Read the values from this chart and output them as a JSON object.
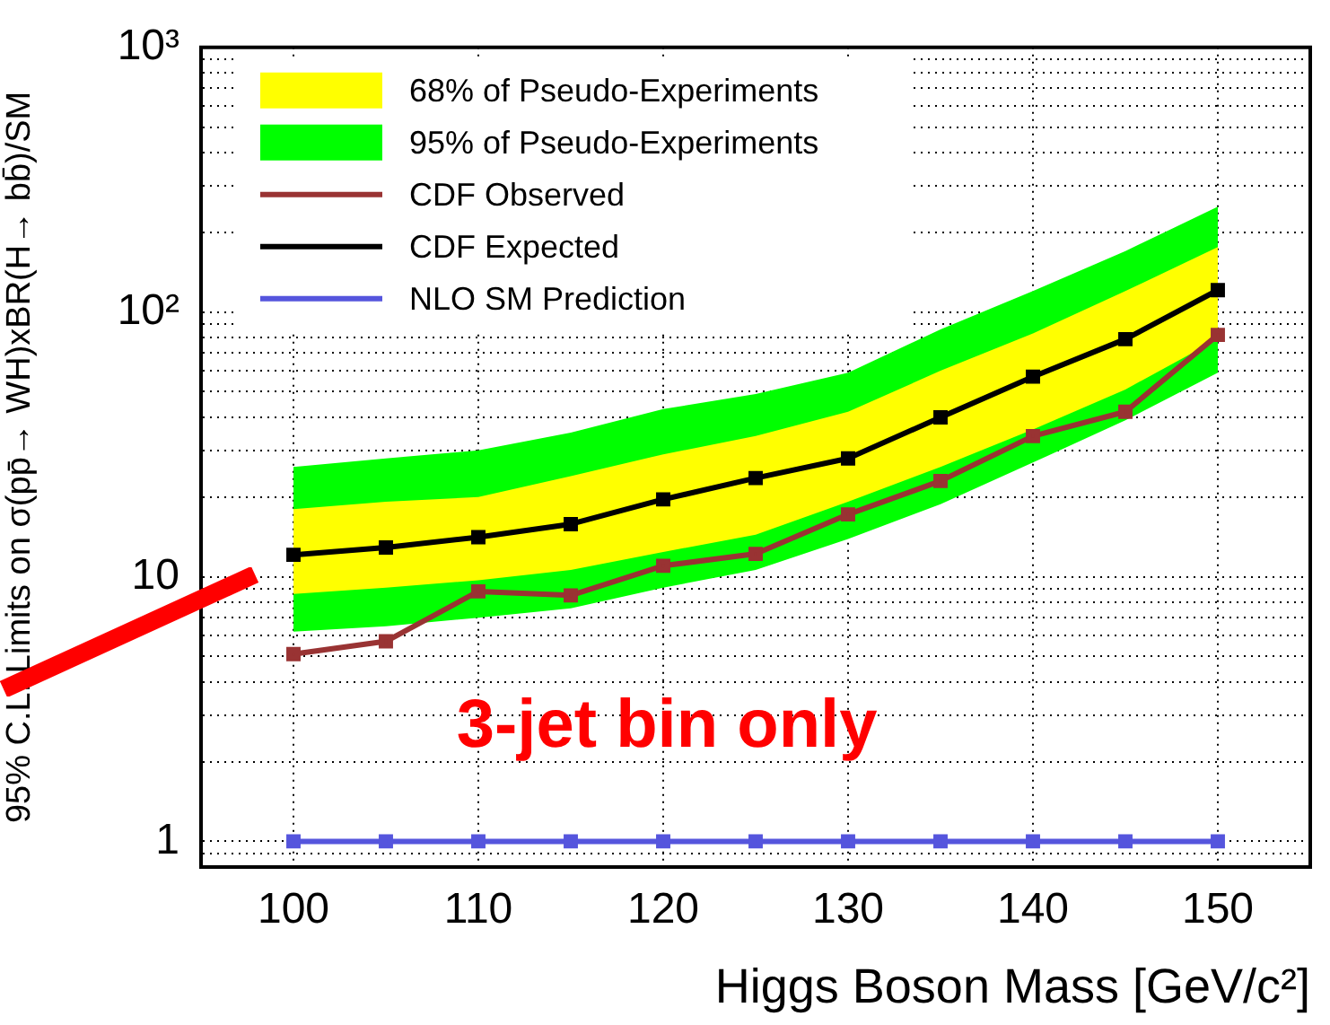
{
  "chart_data": {
    "type": "line",
    "xlabel": "Higgs Boson Mass [GeV/c²]",
    "ylabel": "95% C.L. Limits on σ(pp̄→ WH)xBR(H→ bb̄)/SM",
    "x": [
      100,
      105,
      110,
      115,
      120,
      125,
      130,
      135,
      140,
      145,
      150
    ],
    "series": [
      {
        "name": "68% of Pseudo-Experiments",
        "type": "area",
        "color": "#ffff00",
        "values": [
          null,
          null,
          null,
          null,
          null,
          null,
          null,
          null,
          null,
          null,
          null
        ],
        "lower": [
          8.6,
          9.1,
          9.7,
          10.6,
          12.4,
          14.4,
          19.2,
          26,
          36,
          51,
          79
        ],
        "upper": [
          18,
          19.2,
          20,
          24,
          29,
          34,
          42,
          60,
          83,
          120,
          176
        ]
      },
      {
        "name": "95% of Pseudo-Experiments",
        "type": "area",
        "color": "#00ff00",
        "values": [
          null,
          null,
          null,
          null,
          null,
          null,
          null,
          null,
          null,
          null,
          null
        ],
        "lower": [
          6.2,
          6.5,
          7.0,
          7.6,
          9.1,
          10.6,
          13.9,
          18.8,
          27,
          39,
          59
        ],
        "upper": [
          26,
          28,
          30,
          35,
          43,
          49,
          59,
          86,
          120,
          170,
          250
        ]
      },
      {
        "name": "CDF Observed",
        "color": "#993333",
        "values": [
          5.1,
          5.7,
          8.8,
          8.5,
          11,
          12.2,
          17.2,
          23,
          34,
          42,
          82
        ]
      },
      {
        "name": "CDF Expected",
        "color": "#000000",
        "values": [
          12.1,
          12.9,
          14.1,
          15.8,
          19.6,
          23.6,
          28,
          40,
          57,
          79,
          121
        ]
      },
      {
        "name": "NLO SM Prediction",
        "color": "#5555dd",
        "values": [
          1,
          1,
          1,
          1,
          1,
          1,
          1,
          1,
          1,
          1,
          1
        ]
      }
    ],
    "xlim": [
      95,
      155
    ],
    "xticks": [
      100,
      110,
      120,
      130,
      140,
      150
    ],
    "ylim": [
      0.8,
      1000
    ],
    "yticks": [
      {
        "value": 0.9,
        "label": null
      },
      {
        "value": 1,
        "label": "1"
      },
      {
        "value": 2,
        "label": null
      },
      {
        "value": 3,
        "label": null
      },
      {
        "value": 4,
        "label": null
      },
      {
        "value": 5,
        "label": null
      },
      {
        "value": 6,
        "label": null
      },
      {
        "value": 7,
        "label": null
      },
      {
        "value": 8,
        "label": null
      },
      {
        "value": 9,
        "label": null
      },
      {
        "value": 10,
        "label": "10"
      },
      {
        "value": 20,
        "label": null
      },
      {
        "value": 30,
        "label": null
      },
      {
        "value": 40,
        "label": null
      },
      {
        "value": 50,
        "label": null
      },
      {
        "value": 60,
        "label": null
      },
      {
        "value": 70,
        "label": null
      },
      {
        "value": 80,
        "label": null
      },
      {
        "value": 90,
        "label": null
      },
      {
        "value": 100,
        "label": "10²"
      },
      {
        "value": 200,
        "label": null
      },
      {
        "value": 300,
        "label": null
      },
      {
        "value": 400,
        "label": null
      },
      {
        "value": 500,
        "label": null
      },
      {
        "value": 600,
        "label": null
      },
      {
        "value": 700,
        "label": null
      },
      {
        "value": 800,
        "label": null
      },
      {
        "value": 900,
        "label": null
      },
      {
        "value": 1000,
        "label": "10³"
      }
    ],
    "log": "y",
    "grid": true,
    "legend": "top left",
    "marker": "square",
    "line_style": "solid",
    "annotations": [
      "3-jet bin only"
    ]
  }
}
